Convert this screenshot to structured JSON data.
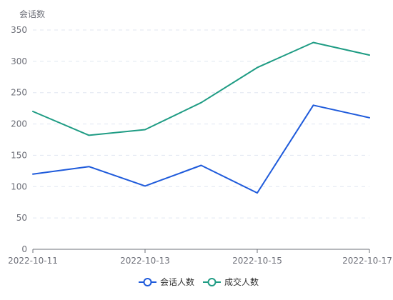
{
  "chart_data": {
    "type": "line",
    "ylabel": "会话数",
    "ylim": [
      0,
      350
    ],
    "yticks": [
      0,
      50,
      100,
      150,
      200,
      250,
      300,
      350
    ],
    "x": [
      "2022-10-11",
      "2022-10-12",
      "2022-10-13",
      "2022-10-14",
      "2022-10-15",
      "2022-10-16",
      "2022-10-17"
    ],
    "xtick_labels": [
      "2022-10-11",
      "2022-10-13",
      "2022-10-15",
      "2022-10-17"
    ],
    "grid": true,
    "legend_position": "bottom-center",
    "series": [
      {
        "name": "会话人数",
        "color": "#1f5bdb",
        "values": [
          120,
          132,
          101,
          134,
          90,
          230,
          210
        ]
      },
      {
        "name": "成交人数",
        "color": "#1f9c84",
        "values": [
          220,
          182,
          191,
          234,
          290,
          330,
          310
        ]
      }
    ]
  }
}
